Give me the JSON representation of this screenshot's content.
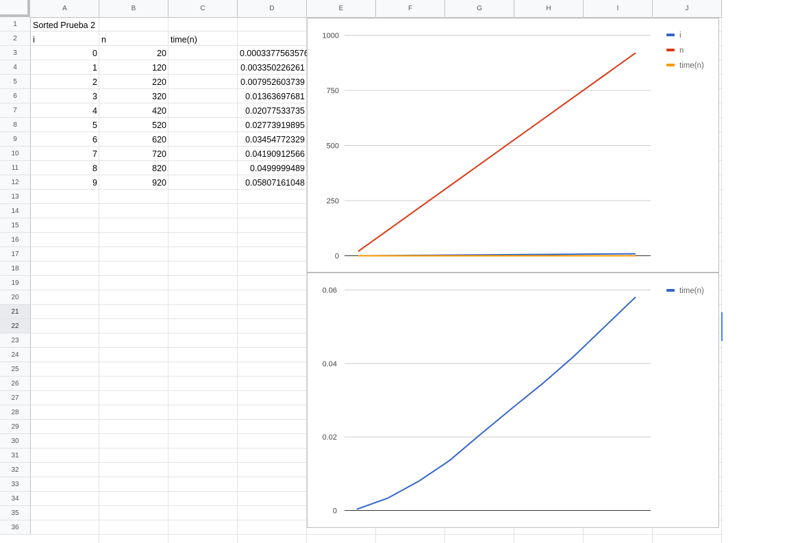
{
  "sheet": {
    "columns": [
      "A",
      "B",
      "C",
      "D",
      "E",
      "F",
      "G",
      "H",
      "I",
      "J"
    ],
    "row_numbers": [
      "1",
      "2",
      "3",
      "4",
      "5",
      "6",
      "7",
      "8",
      "9",
      "10",
      "11",
      "12",
      "13",
      "14",
      "15",
      "16",
      "17",
      "18",
      "19",
      "20",
      "21",
      "22",
      "23",
      "24",
      "25",
      "26",
      "27",
      "28",
      "29",
      "30",
      "31",
      "32",
      "33",
      "34",
      "35",
      "36"
    ],
    "selected_rows": [
      "21",
      "22"
    ],
    "title": "Sorted Prueba 2",
    "headers": {
      "i": "i",
      "n": "n",
      "time": "time(n)"
    },
    "rows": [
      {
        "i": "0",
        "n": "20",
        "time": "0.0003377563576"
      },
      {
        "i": "1",
        "n": "120",
        "time": "0.003350226261"
      },
      {
        "i": "2",
        "n": "220",
        "time": "0.007952603739"
      },
      {
        "i": "3",
        "n": "320",
        "time": "0.01363697681"
      },
      {
        "i": "4",
        "n": "420",
        "time": "0.02077533735"
      },
      {
        "i": "5",
        "n": "520",
        "time": "0.02773919895"
      },
      {
        "i": "6",
        "n": "620",
        "time": "0.03454772329"
      },
      {
        "i": "7",
        "n": "720",
        "time": "0.04190912566"
      },
      {
        "i": "8",
        "n": "820",
        "time": "0.0499999489"
      },
      {
        "i": "9",
        "n": "920",
        "time": "0.05807161048"
      }
    ]
  },
  "chart_data": [
    {
      "type": "line",
      "title": "",
      "xlabel": "",
      "ylabel": "",
      "x": [
        0,
        1,
        2,
        3,
        4,
        5,
        6,
        7,
        8,
        9
      ],
      "ylim": [
        0,
        1000
      ],
      "y_ticks": [
        "0",
        "250",
        "500",
        "750",
        "1000"
      ],
      "y_tick_values": [
        0,
        250,
        500,
        750,
        1000
      ],
      "grid": true,
      "legend_position": "right",
      "series": [
        {
          "name": "i",
          "color": "#3366cc",
          "values": [
            0,
            1,
            2,
            3,
            4,
            5,
            6,
            7,
            8,
            9
          ]
        },
        {
          "name": "n",
          "color": "#dc3912",
          "values": [
            20,
            120,
            220,
            320,
            420,
            520,
            620,
            720,
            820,
            920
          ]
        },
        {
          "name": "time(n)",
          "color": "#ff9900",
          "values": [
            0.0003377563576,
            0.003350226261,
            0.007952603739,
            0.01363697681,
            0.02077533735,
            0.02773919895,
            0.03454772329,
            0.04190912566,
            0.0499999489,
            0.05807161048
          ]
        }
      ]
    },
    {
      "type": "line",
      "title": "",
      "xlabel": "",
      "ylabel": "",
      "x": [
        0,
        1,
        2,
        3,
        4,
        5,
        6,
        7,
        8,
        9
      ],
      "ylim": [
        0,
        0.06
      ],
      "y_ticks": [
        "0",
        "0.02",
        "0.04",
        "0.06"
      ],
      "y_tick_values": [
        0,
        0.02,
        0.04,
        0.06
      ],
      "grid": true,
      "legend_position": "right",
      "series": [
        {
          "name": "time(n)",
          "color": "#3366cc",
          "values": [
            0.0003377563576,
            0.003350226261,
            0.007952603739,
            0.01363697681,
            0.02077533735,
            0.02773919895,
            0.03454772329,
            0.04190912566,
            0.0499999489,
            0.05807161048
          ]
        }
      ]
    }
  ]
}
